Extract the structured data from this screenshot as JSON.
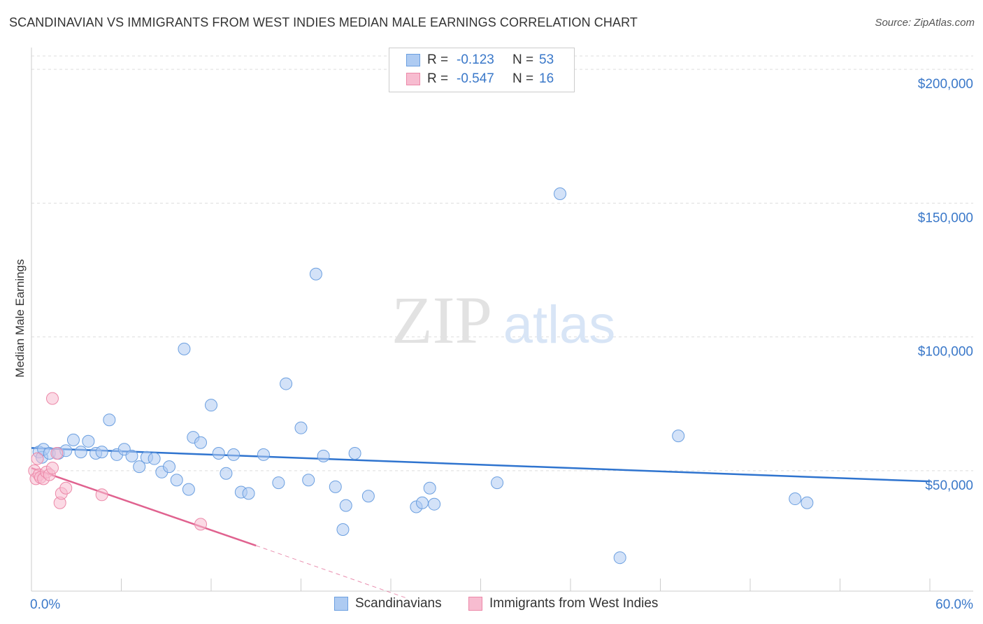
{
  "title": "SCANDINAVIAN VS IMMIGRANTS FROM WEST INDIES MEDIAN MALE EARNINGS CORRELATION CHART",
  "source": "Source: ZipAtlas.com",
  "watermark": {
    "zip": "ZIP",
    "atlas": "atlas"
  },
  "colors": {
    "blue_fill": "#aecbf2",
    "blue_stroke": "#6b9fe0",
    "blue_line": "#2f74cf",
    "pink_fill": "#f7bcd0",
    "pink_stroke": "#ec88a8",
    "pink_line": "#e0628f",
    "axis_text": "#3a78c9",
    "grid": "#dddddd"
  },
  "legend": {
    "rows": [
      {
        "r_label": "R =",
        "r_value": "-0.123",
        "n_label": "N =",
        "n_value": "53"
      },
      {
        "r_label": "R =",
        "r_value": "-0.547",
        "n_label": "N =",
        "n_value": "16"
      }
    ]
  },
  "bottom_legend": [
    "Scandinavians",
    "Immigrants from West Indies"
  ],
  "chart_data": {
    "type": "scatter",
    "xlabel": "",
    "ylabel": "Median Male Earnings",
    "xlim": [
      0,
      60
    ],
    "ylim": [
      5000,
      205000
    ],
    "x_tick_labels": [
      {
        "value": 0,
        "label": "0.0%"
      },
      {
        "value": 60,
        "label": "60.0%"
      }
    ],
    "y_ticks": [
      {
        "value": 50000,
        "label": "$50,000"
      },
      {
        "value": 100000,
        "label": "$100,000"
      },
      {
        "value": 150000,
        "label": "$150,000"
      },
      {
        "value": 200000,
        "label": "$200,000"
      }
    ],
    "grid": true,
    "series": [
      {
        "name": "Scandinavians",
        "color": "#6b9fe0",
        "points": [
          [
            0.5,
            57000
          ],
          [
            0.7,
            55000
          ],
          [
            0.8,
            58000
          ],
          [
            1.2,
            56500
          ],
          [
            1.8,
            56500
          ],
          [
            2.3,
            57500
          ],
          [
            2.8,
            61500
          ],
          [
            3.3,
            57000
          ],
          [
            3.8,
            61000
          ],
          [
            4.3,
            56500
          ],
          [
            4.7,
            57000
          ],
          [
            5.2,
            69000
          ],
          [
            5.7,
            56000
          ],
          [
            6.2,
            58000
          ],
          [
            6.7,
            55500
          ],
          [
            7.2,
            51500
          ],
          [
            7.7,
            55000
          ],
          [
            8.2,
            54500
          ],
          [
            8.7,
            49500
          ],
          [
            9.2,
            51500
          ],
          [
            9.7,
            46500
          ],
          [
            10.2,
            95500
          ],
          [
            10.5,
            43000
          ],
          [
            10.8,
            62500
          ],
          [
            11.3,
            60500
          ],
          [
            12.0,
            74500
          ],
          [
            12.5,
            56500
          ],
          [
            13.0,
            49000
          ],
          [
            13.5,
            56000
          ],
          [
            14.0,
            42000
          ],
          [
            14.5,
            41500
          ],
          [
            15.5,
            56000
          ],
          [
            16.5,
            45500
          ],
          [
            17.0,
            82500
          ],
          [
            18.0,
            66000
          ],
          [
            18.5,
            46500
          ],
          [
            19.0,
            123500
          ],
          [
            19.5,
            55500
          ],
          [
            20.3,
            44000
          ],
          [
            20.8,
            28000
          ],
          [
            21.0,
            37000
          ],
          [
            21.6,
            56500
          ],
          [
            22.5,
            40500
          ],
          [
            25.7,
            36500
          ],
          [
            26.1,
            38000
          ],
          [
            26.6,
            43500
          ],
          [
            26.9,
            37500
          ],
          [
            31.1,
            45500
          ],
          [
            35.3,
            153500
          ],
          [
            39.3,
            17500
          ],
          [
            43.2,
            63000
          ],
          [
            51.0,
            39500
          ],
          [
            51.8,
            38000
          ]
        ],
        "trendline": {
          "x": [
            0,
            60
          ],
          "y": [
            58500,
            46000
          ]
        }
      },
      {
        "name": "Immigrants from West Indies",
        "color": "#ec88a8",
        "points": [
          [
            0.2,
            50000
          ],
          [
            0.3,
            47000
          ],
          [
            0.4,
            54500
          ],
          [
            0.5,
            48500
          ],
          [
            0.6,
            47500
          ],
          [
            0.8,
            47000
          ],
          [
            1.0,
            49500
          ],
          [
            1.2,
            48500
          ],
          [
            1.4,
            77000
          ],
          [
            1.4,
            51000
          ],
          [
            1.7,
            56500
          ],
          [
            1.9,
            38000
          ],
          [
            2.0,
            41500
          ],
          [
            2.3,
            43500
          ],
          [
            4.7,
            41000
          ],
          [
            11.3,
            30000
          ]
        ],
        "trendline": {
          "x": [
            0,
            15
          ],
          "y": [
            51000,
            22000
          ]
        },
        "trendline_extension": {
          "x": [
            15,
            25
          ],
          "y": [
            22000,
            2500
          ]
        }
      }
    ]
  }
}
